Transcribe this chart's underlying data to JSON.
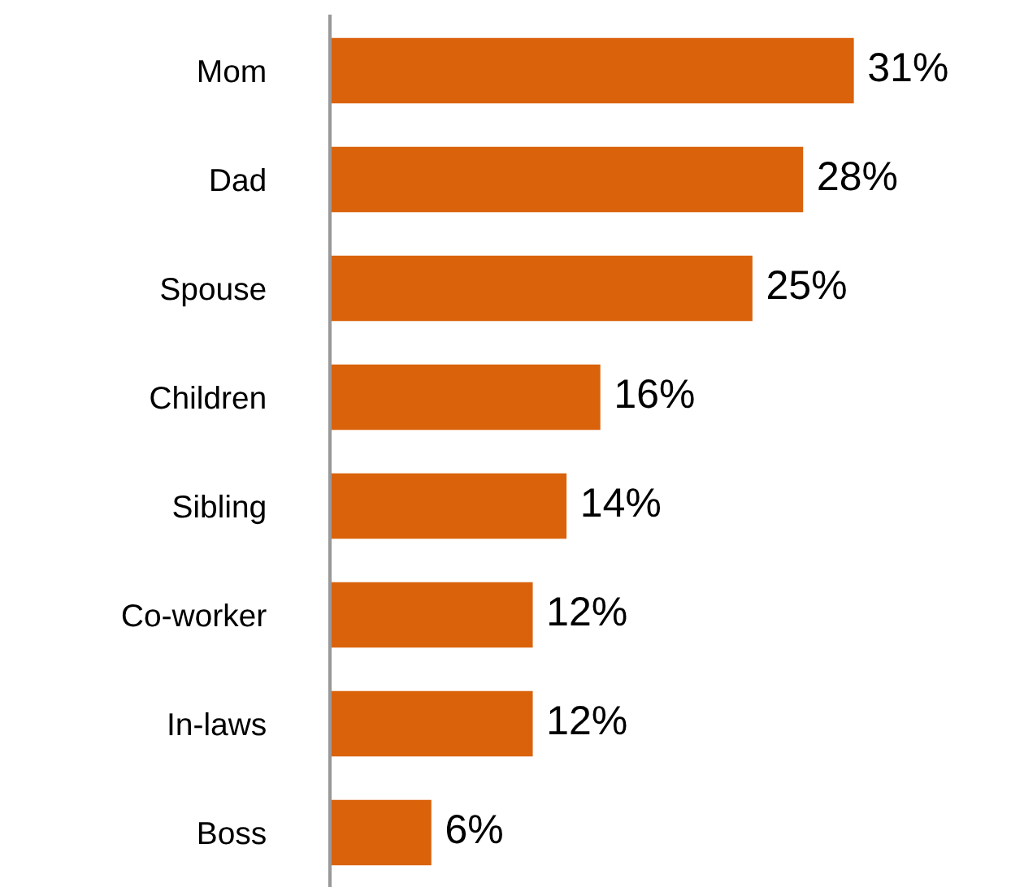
{
  "chart_data": {
    "type": "bar",
    "orientation": "horizontal",
    "categories": [
      "Mom",
      "Dad",
      "Spouse",
      "Children",
      "Sibling",
      "Co-worker",
      "In-laws",
      "Boss"
    ],
    "values": [
      31,
      28,
      25,
      16,
      14,
      12,
      12,
      6
    ],
    "value_labels": [
      "31%",
      "28%",
      "25%",
      "16%",
      "14%",
      "12%",
      "12%",
      "6%"
    ],
    "color": "#d9620b",
    "tick_labels": "y",
    "grid": false,
    "legend": false
  }
}
